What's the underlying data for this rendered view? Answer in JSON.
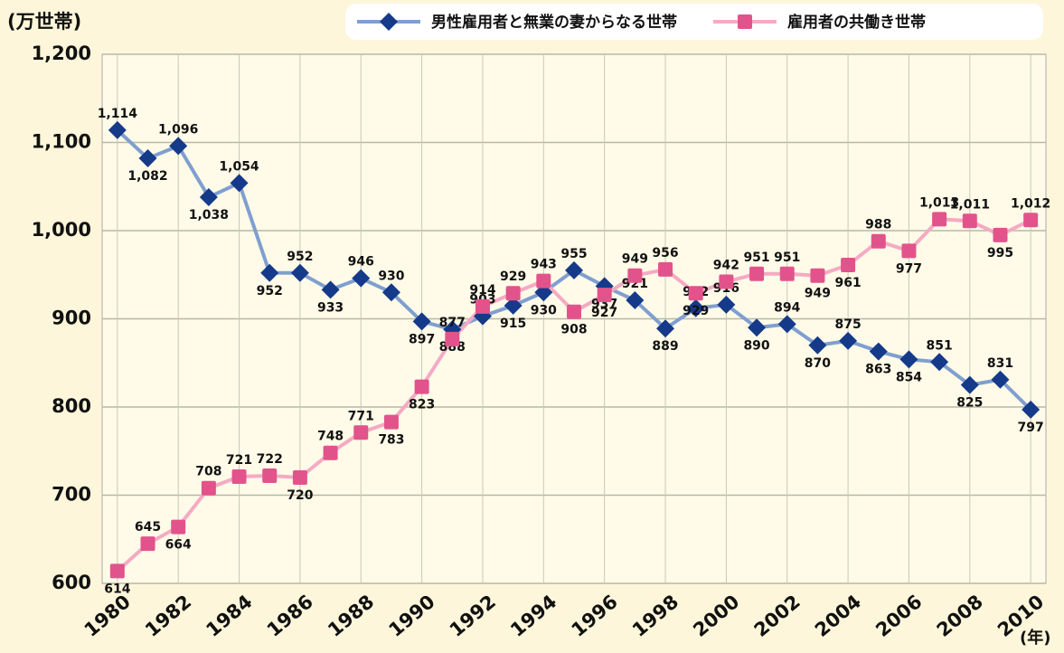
{
  "chart_data": {
    "type": "line",
    "y_label": "(万世帯)",
    "x_label": "(年)",
    "x": [
      1980,
      1981,
      1982,
      1983,
      1984,
      1985,
      1986,
      1987,
      1988,
      1989,
      1990,
      1991,
      1992,
      1993,
      1994,
      1995,
      1996,
      1997,
      1998,
      1999,
      2000,
      2001,
      2002,
      2003,
      2004,
      2005,
      2006,
      2007,
      2008,
      2009,
      2010
    ],
    "series": [
      {
        "name": "男性雇用者と無業の妻からなる世帯",
        "color": "#163a8a",
        "line_color": "#7f9fd0",
        "marker": "diamond",
        "values": [
          1114,
          1082,
          1096,
          1038,
          1054,
          952,
          952,
          933,
          946,
          930,
          897,
          888,
          903,
          915,
          930,
          955,
          937,
          921,
          889,
          912,
          916,
          890,
          894,
          870,
          875,
          863,
          854,
          851,
          825,
          831,
          797
        ],
        "value_labels": [
          "1,114",
          "1,082",
          "1,096",
          "1,038",
          "1,054",
          "952",
          "952",
          "933",
          "946",
          "930",
          "897",
          "888",
          "903",
          "915",
          "930",
          "955",
          "937",
          "921",
          "889",
          "912",
          "916",
          "890",
          "894",
          "870",
          "875",
          "863",
          "854",
          "851",
          "825",
          "831",
          "797"
        ]
      },
      {
        "name": "雇用者の共働き世帯",
        "color": "#e2538c",
        "line_color": "#f5aac4",
        "marker": "square",
        "values": [
          614,
          645,
          664,
          708,
          721,
          722,
          720,
          748,
          771,
          783,
          823,
          877,
          914,
          929,
          943,
          908,
          927,
          949,
          956,
          929,
          942,
          951,
          951,
          949,
          961,
          988,
          977,
          1013,
          1011,
          995,
          1012
        ],
        "value_labels": [
          "614",
          "645",
          "664",
          "708",
          "721",
          "722",
          "720",
          "748",
          "771",
          "783",
          "823",
          "877",
          "914",
          "929",
          "943",
          "908",
          "927",
          "949",
          "956",
          "929",
          "942",
          "951",
          "951",
          "949",
          "961",
          "988",
          "977",
          "1,013",
          "1,011",
          "995",
          "1,012"
        ]
      }
    ],
    "xlim": [
      1979.5,
      2010.5
    ],
    "xticks": [
      1980,
      1982,
      1984,
      1986,
      1988,
      1990,
      1992,
      1994,
      1996,
      1998,
      2000,
      2002,
      2004,
      2006,
      2008,
      2010
    ],
    "ylim": [
      600,
      1200
    ],
    "yticks": [
      600,
      700,
      800,
      900,
      {
        "value": 1000,
        "label": "1,000"
      },
      {
        "value": 1100,
        "label": "1,100"
      },
      {
        "value": 1200,
        "label": "1,200"
      }
    ],
    "grid": true,
    "legend": "top-right"
  }
}
